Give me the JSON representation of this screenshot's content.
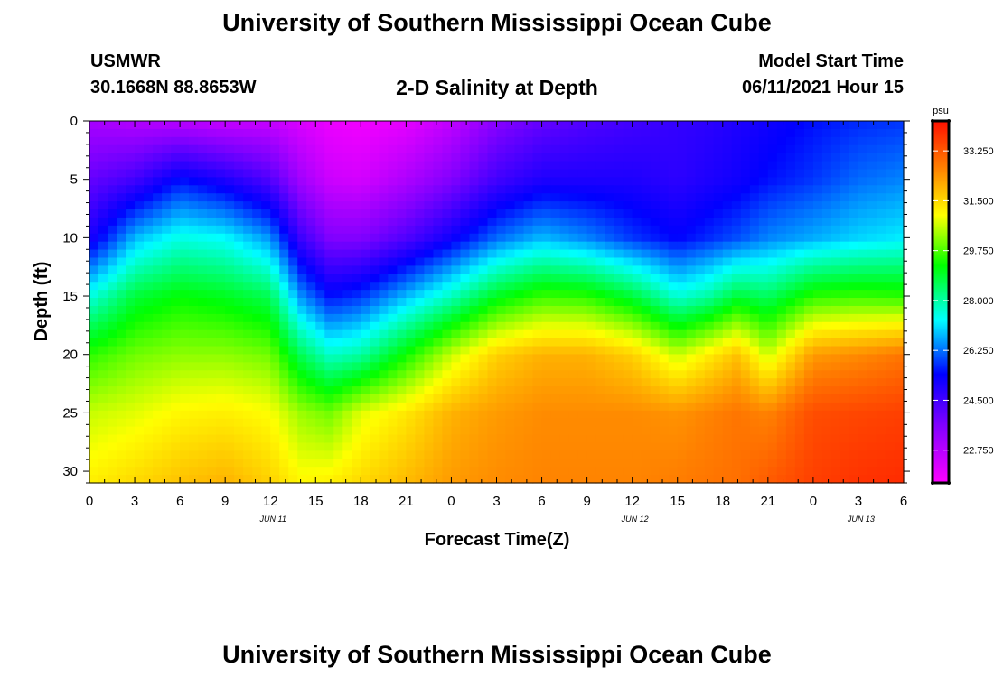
{
  "header": {
    "title": "University of Southern Mississippi Ocean Cube",
    "station_name": "USMWR",
    "station_coords": "30.1668N  88.8653W",
    "chart_title": "2-D Salinity at Depth",
    "model_start_label": "Model Start Time",
    "model_start_value": "06/11/2021 Hour 15"
  },
  "footer": {
    "title": "University of Southern Mississippi Ocean Cube"
  },
  "colors": {
    "background": "#ffffff",
    "colormap": "rainbow-magenta-to-red"
  },
  "chart_data": {
    "type": "heatmap",
    "title": "2-D Salinity at Depth",
    "xlabel": "Forecast Time(Z)",
    "ylabel": "Depth (ft)",
    "x_range_hours": [
      0,
      54
    ],
    "ylim": [
      0,
      31
    ],
    "y_inverted": true,
    "x_tick_labels": [
      "0",
      "3",
      "6",
      "9",
      "12",
      "15",
      "18",
      "21",
      "0",
      "3",
      "6",
      "9",
      "12",
      "15",
      "18",
      "21",
      "0",
      "3",
      "6"
    ],
    "y_ticks": [
      "0",
      "5",
      "10",
      "15",
      "20",
      "25",
      "30"
    ],
    "date_labels": [
      {
        "label": "JUN 11",
        "hour": 12
      },
      {
        "label": "JUN 12",
        "hour": 36
      },
      {
        "label": "JUN 13",
        "hour": 51
      }
    ],
    "colorbar": {
      "unit": "psu",
      "min": 21.6,
      "max": 34.3,
      "tick_labels": [
        "22.750",
        "24.500",
        "26.250",
        "28.000",
        "29.750",
        "31.500",
        "33.250"
      ]
    },
    "salinity_profiles": [
      {
        "hour": 0,
        "depth_ft": [
          0,
          5,
          10,
          15,
          20,
          25,
          31
        ],
        "psu": [
          23.0,
          24.0,
          25.0,
          27.5,
          29.5,
          30.6,
          31.2
        ]
      },
      {
        "hour": 3,
        "depth_ft": [
          0,
          5,
          10,
          15,
          20,
          25,
          31
        ],
        "psu": [
          22.8,
          24.5,
          26.8,
          28.8,
          30.0,
          30.8,
          31.5
        ]
      },
      {
        "hour": 6,
        "depth_ft": [
          0,
          5,
          10,
          15,
          20,
          25,
          31
        ],
        "psu": [
          22.7,
          25.5,
          27.5,
          29.2,
          30.2,
          31.1,
          31.8
        ]
      },
      {
        "hour": 9,
        "depth_ft": [
          0,
          5,
          10,
          15,
          20,
          25,
          31
        ],
        "psu": [
          22.5,
          25.0,
          27.3,
          29.0,
          30.2,
          31.2,
          32.0
        ]
      },
      {
        "hour": 12,
        "depth_ft": [
          0,
          5,
          10,
          15,
          20,
          25,
          31
        ],
        "psu": [
          22.5,
          24.3,
          26.5,
          28.6,
          30.0,
          31.0,
          31.6
        ]
      },
      {
        "hour": 14,
        "depth_ft": [
          0,
          5,
          10,
          15,
          20,
          25,
          31
        ],
        "psu": [
          22.2,
          23.1,
          24.6,
          26.5,
          28.6,
          30.3,
          31.1
        ]
      },
      {
        "hour": 16,
        "depth_ft": [
          0,
          5,
          10,
          15,
          20,
          25,
          31
        ],
        "psu": [
          21.9,
          22.4,
          23.6,
          25.5,
          27.7,
          30.0,
          31.2
        ]
      },
      {
        "hour": 18,
        "depth_ft": [
          0,
          5,
          10,
          15,
          20,
          25,
          31
        ],
        "psu": [
          21.8,
          22.3,
          23.6,
          25.8,
          28.0,
          30.8,
          31.5
        ]
      },
      {
        "hour": 21,
        "depth_ft": [
          0,
          5,
          10,
          15,
          20,
          25,
          31
        ],
        "psu": [
          22.0,
          22.9,
          24.3,
          26.8,
          29.3,
          31.3,
          31.9
        ]
      },
      {
        "hour": 24,
        "depth_ft": [
          0,
          5,
          10,
          15,
          20,
          25,
          31
        ],
        "psu": [
          22.6,
          23.6,
          25.2,
          27.8,
          30.6,
          32.0,
          32.3
        ]
      },
      {
        "hour": 27,
        "depth_ft": [
          0,
          5,
          10,
          15,
          20,
          25,
          31
        ],
        "psu": [
          23.5,
          24.5,
          26.2,
          29.0,
          31.6,
          32.3,
          32.5
        ]
      },
      {
        "hour": 30,
        "depth_ft": [
          0,
          5,
          10,
          15,
          20,
          25,
          31
        ],
        "psu": [
          24.0,
          25.0,
          26.8,
          29.6,
          32.0,
          32.5,
          32.6
        ]
      },
      {
        "hour": 33,
        "depth_ft": [
          0,
          5,
          10,
          15,
          20,
          25,
          31
        ],
        "psu": [
          24.3,
          25.0,
          26.4,
          29.5,
          32.0,
          32.5,
          32.6
        ]
      },
      {
        "hour": 36,
        "depth_ft": [
          0,
          5,
          10,
          15,
          20,
          25,
          31
        ],
        "psu": [
          24.5,
          25.0,
          25.8,
          28.8,
          31.6,
          32.5,
          32.6
        ]
      },
      {
        "hour": 39,
        "depth_ft": [
          0,
          5,
          10,
          15,
          20,
          25,
          31
        ],
        "psu": [
          24.7,
          24.8,
          25.4,
          27.6,
          30.6,
          32.4,
          32.7
        ]
      },
      {
        "hour": 41,
        "depth_ft": [
          0,
          5,
          10,
          15,
          20,
          25,
          31
        ],
        "psu": [
          24.8,
          25.0,
          25.7,
          28.0,
          31.2,
          32.6,
          32.8
        ]
      },
      {
        "hour": 43,
        "depth_ft": [
          0,
          5,
          10,
          15,
          20,
          25,
          31
        ],
        "psu": [
          25.0,
          25.2,
          26.0,
          28.8,
          31.8,
          32.8,
          32.9
        ]
      },
      {
        "hour": 45,
        "depth_ft": [
          0,
          5,
          10,
          15,
          20,
          25,
          31
        ],
        "psu": [
          25.2,
          25.5,
          26.4,
          28.5,
          30.6,
          32.6,
          33.2
        ]
      },
      {
        "hour": 48,
        "depth_ft": [
          0,
          5,
          10,
          15,
          20,
          25,
          31
        ],
        "psu": [
          25.5,
          25.8,
          26.7,
          29.5,
          32.3,
          33.4,
          33.6
        ]
      },
      {
        "hour": 51,
        "depth_ft": [
          0,
          5,
          10,
          15,
          20,
          25,
          31
        ],
        "psu": [
          25.7,
          26.2,
          27.0,
          29.6,
          32.5,
          33.5,
          33.8
        ]
      },
      {
        "hour": 54,
        "depth_ft": [
          0,
          5,
          10,
          15,
          20,
          25,
          31
        ],
        "psu": [
          25.8,
          26.4,
          27.2,
          29.5,
          32.8,
          33.6,
          33.9
        ]
      }
    ]
  }
}
